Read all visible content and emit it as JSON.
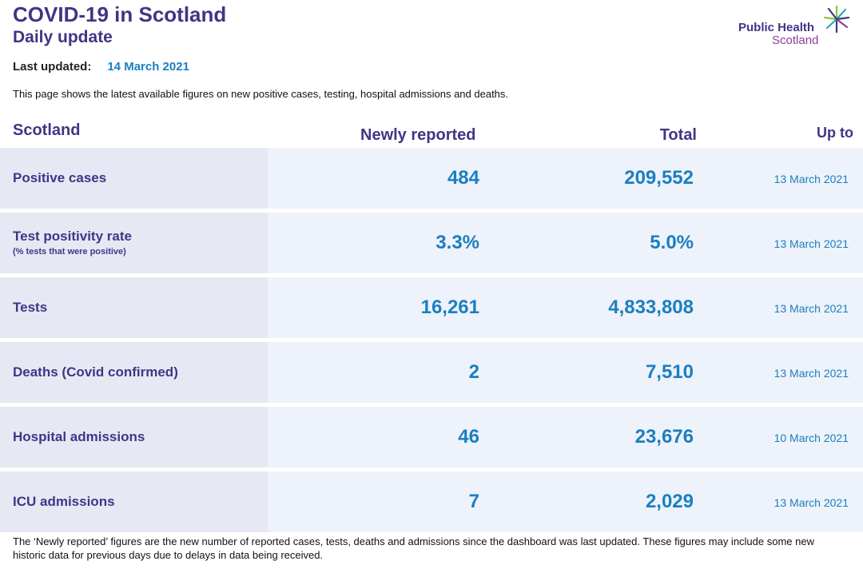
{
  "header": {
    "title": "COVID-19 in Scotland",
    "subtitle": "Daily update",
    "last_updated_label": "Last updated:",
    "last_updated_date": "14 March 2021",
    "intro": "This page shows the latest available figures on new positive cases, testing, hospital admissions and deaths."
  },
  "logo": {
    "line1": "Public Health",
    "line2": "Scotland",
    "icon": "star-burst-icon"
  },
  "table": {
    "columns": {
      "region": "Scotland",
      "newly_reported": "Newly reported",
      "total": "Total",
      "up_to": "Up to"
    },
    "rows": [
      {
        "label": "Positive cases",
        "sublabel": "",
        "newly": "484",
        "total": "209,552",
        "up_to": "13 March 2021"
      },
      {
        "label": "Test positivity rate",
        "sublabel": "(% tests that were positive)",
        "newly": "3.3%",
        "total": "5.0%",
        "up_to": "13 March 2021"
      },
      {
        "label": "Tests",
        "sublabel": "",
        "newly": "16,261",
        "total": "4,833,808",
        "up_to": "13 March 2021"
      },
      {
        "label": "Deaths (Covid confirmed)",
        "sublabel": "",
        "newly": "2",
        "total": "7,510",
        "up_to": "13 March 2021"
      },
      {
        "label": "Hospital admissions",
        "sublabel": "",
        "newly": "46",
        "total": "23,676",
        "up_to": "10 March 2021"
      },
      {
        "label": "ICU admissions",
        "sublabel": "",
        "newly": "7",
        "total": "2,029",
        "up_to": "13 March 2021"
      }
    ]
  },
  "footnote": "The ‘Newly reported’ figures are the new number of reported cases, tests, deaths and admissions since the dashboard was last updated. These figures may include some new historic data for previous days due to delays in data being received.",
  "colors": {
    "heading": "#3f3685",
    "value": "#1a7fc1",
    "row_bg": "#eef2fa",
    "label_bg": "#e6e9f4",
    "logo_secondary": "#8e3f98"
  }
}
